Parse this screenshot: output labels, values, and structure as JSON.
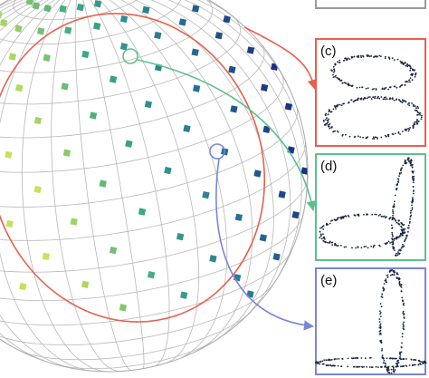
{
  "panels": [
    {
      "label": "(c)"
    },
    {
      "label": "(d)"
    },
    {
      "label": "(e)"
    }
  ]
}
